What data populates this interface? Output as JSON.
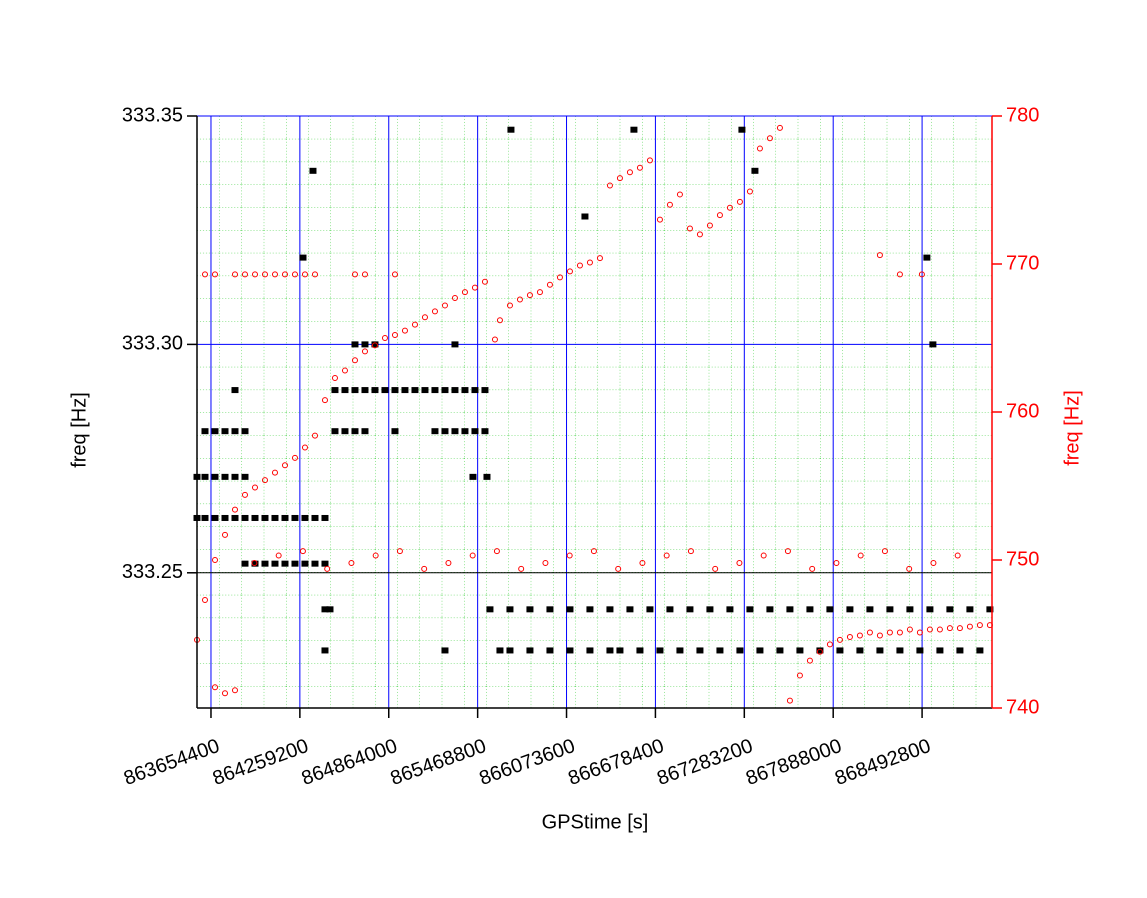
{
  "chart_data": {
    "type": "scatter",
    "x_label": "GPStime [s]",
    "y_label": "freq [Hz]",
    "y2_label": "freq [Hz]",
    "xlim": [
      863559300,
      868968500
    ],
    "xticks": [
      863654400,
      864259200,
      864864000,
      865468800,
      866073600,
      866678400,
      867283200,
      867888000,
      868492800
    ],
    "ylim": [
      333.2204,
      333.35
    ],
    "yticks": [
      333.35,
      {
        "value": 333.3,
        "label": "333.30"
      },
      333.25
    ],
    "y2lim": [
      740,
      780
    ],
    "y2ticks": [
      740,
      750,
      760,
      770,
      780
    ],
    "grid": true,
    "series": [
      {
        "color": "#000000",
        "marker": "square",
        "x": [
          863613700,
          863681800,
          863749800,
          863817800,
          863885800,
          864498100,
          864566100,
          864634200,
          864702200,
          864906300,
          865178400,
          865246500,
          865314500,
          865382500,
          865450600,
          865518600
        ],
        "values": [
          333.281,
          333.281,
          333.281,
          333.281,
          333.281,
          333.281,
          333.281,
          333.281,
          333.281,
          333.281,
          333.281,
          333.281,
          333.281,
          333.281,
          333.281,
          333.281
        ]
      },
      {
        "color": "#000000",
        "marker": "square",
        "x": [
          863559300,
          863613700,
          863681800,
          863749800,
          863817800,
          863885800
        ],
        "values": [
          333.271,
          333.271,
          333.271,
          333.271,
          333.271,
          333.271
        ]
      },
      {
        "color": "#000000",
        "marker": "square",
        "x": [
          863559300,
          863613700,
          863681800,
          863749800,
          863817800,
          863885800,
          863953900,
          864021900,
          864089900,
          864158000,
          864226000,
          864294000,
          864362100,
          864430100
        ],
        "values": [
          333.262,
          333.262,
          333.262,
          333.262,
          333.262,
          333.262,
          333.262,
          333.262,
          333.262,
          333.262,
          333.262,
          333.262,
          333.262,
          333.262
        ]
      },
      {
        "color": "#000000",
        "marker": "square",
        "x": [
          863817800,
          864498100,
          864566100,
          864634200,
          864702200,
          864770200,
          864838300,
          864906300,
          864974300,
          865042400,
          865110400,
          865178400,
          865246500,
          865314500,
          865382500,
          865450600,
          865518600
        ],
        "values": [
          333.29,
          333.29,
          333.29,
          333.29,
          333.29,
          333.29,
          333.29,
          333.29,
          333.29,
          333.29,
          333.29,
          333.29,
          333.29,
          333.29,
          333.29,
          333.29,
          333.29
        ]
      },
      {
        "color": "#000000",
        "marker": "square",
        "x": [
          864634200,
          864702200,
          864770200,
          865314500
        ],
        "values": [
          333.3,
          333.3,
          333.3,
          333.3
        ]
      },
      {
        "color": "#000000",
        "marker": "square",
        "x": [
          863885800,
          863953900,
          864021900,
          864089900,
          864158000,
          864226000,
          864294000,
          864362100,
          864430100
        ],
        "values": [
          333.252,
          333.252,
          333.252,
          333.252,
          333.252,
          333.252,
          333.252,
          333.252,
          333.252
        ]
      },
      {
        "color": "#000000",
        "marker": "square",
        "x": [
          864430100,
          864464100,
          865552600,
          865688700,
          865824700,
          865960800,
          866096900,
          866232900,
          866369000,
          866505100,
          866641100,
          866777200,
          866913300,
          867049300,
          867185400,
          867321500,
          867457500,
          867593600,
          867729700,
          867865700,
          868001800,
          868137900,
          868273900,
          868410000,
          868546100,
          868682100,
          868818200,
          868954300
        ],
        "values": [
          333.242,
          333.242,
          333.242,
          333.242,
          333.242,
          333.242,
          333.242,
          333.242,
          333.242,
          333.242,
          333.242,
          333.242,
          333.242,
          333.242,
          333.242,
          333.242,
          333.242,
          333.242,
          333.242,
          333.242,
          333.242,
          333.242,
          333.242,
          333.242,
          333.242,
          333.242,
          333.242,
          333.242
        ]
      },
      {
        "color": "#000000",
        "marker": "square",
        "x": [
          864430100,
          865246500,
          865620600,
          865688700,
          865824700,
          865960800,
          866096900,
          866232900,
          866369000,
          866437000,
          866573100,
          866709200,
          866845200,
          866981300,
          867117400,
          867253400,
          867389500,
          867525600,
          867661600,
          867797700,
          867933800,
          868069800,
          868205900,
          868342000,
          868478000,
          868614100,
          868750200,
          868886200
        ],
        "values": [
          333.233,
          333.233,
          333.233,
          333.233,
          333.233,
          333.233,
          333.233,
          333.233,
          333.233,
          333.233,
          333.233,
          333.233,
          333.233,
          333.233,
          333.233,
          333.233,
          333.233,
          333.233,
          333.233,
          333.233,
          333.233,
          333.233,
          333.233,
          333.233,
          333.233,
          333.233,
          333.233,
          333.233
        ]
      },
      {
        "color": "#000000",
        "marker": "square",
        "x": [
          865695400,
          866532200,
          867267000,
          864348400,
          864280400,
          866198900,
          867355500,
          868525500,
          868566300,
          865437000,
          865532300
        ],
        "values": [
          333.347,
          333.347,
          333.347,
          333.338,
          333.319,
          333.328,
          333.338,
          333.319,
          333.3,
          333.271,
          333.271
        ]
      },
      {
        "color": "#ff0000",
        "marker": "circle",
        "axis": "y2",
        "x": [
          863559300,
          863613700,
          863681800,
          863749800,
          863817800,
          863885800,
          863953900,
          864021900,
          864089900,
          864158000,
          864226000,
          864294000,
          864362100,
          864430100,
          864498100,
          864566100,
          864634200,
          864702200,
          864770200,
          864838300,
          864906300,
          864974300,
          865042400,
          865110400,
          865178400,
          865246500,
          865314500,
          865382500,
          865450600,
          865518600
        ],
        "values": [
          744.6,
          747.3,
          750,
          751.7,
          753.4,
          754.4,
          754.9,
          755.4,
          755.9,
          756.4,
          756.9,
          757.6,
          758.4,
          760.8,
          762.3,
          762.8,
          763.5,
          764.1,
          764.5,
          765,
          765.2,
          765.5,
          765.9,
          766.4,
          766.8,
          767.2,
          767.7,
          768.1,
          768.4,
          768.8
        ]
      },
      {
        "color": "#ff0000",
        "marker": "circle",
        "axis": "y2",
        "x": [
          865586600,
          865620600,
          865688700,
          865756700,
          865824700,
          865892800,
          865960800,
          866028800,
          866096900,
          866164900,
          866232900,
          866301000
        ],
        "values": [
          764.9,
          766.2,
          767.2,
          767.6,
          767.9,
          768.1,
          768.6,
          769.1,
          769.5,
          769.9,
          770.1,
          770.4
        ]
      },
      {
        "color": "#ff0000",
        "marker": "circle",
        "axis": "y2",
        "x": [
          866369000,
          866437000,
          866505100,
          866573100,
          866641100
        ],
        "values": [
          775.3,
          775.8,
          776.2,
          776.5,
          777
        ]
      },
      {
        "color": "#ff0000",
        "marker": "circle",
        "axis": "y2",
        "x": [
          866709200,
          866777200,
          866845200
        ],
        "values": [
          773,
          774,
          774.7
        ]
      },
      {
        "color": "#ff0000",
        "marker": "circle",
        "axis": "y2",
        "x": [
          866913300,
          866981300,
          867049300,
          867117400,
          867185400,
          867253400,
          867321500
        ],
        "values": [
          772.4,
          772,
          772.6,
          773.3,
          773.8,
          774.2,
          774.9
        ]
      },
      {
        "color": "#ff0000",
        "marker": "circle",
        "axis": "y2",
        "x": [
          867389500,
          867457500,
          867525600
        ],
        "values": [
          777.8,
          778.5,
          779.2
        ]
      },
      {
        "color": "#ff0000",
        "marker": "circle",
        "axis": "y2",
        "x": [
          867593600,
          867661600,
          867729700,
          867797700,
          867865700,
          867933800,
          868001800,
          868069800,
          868137900,
          868205900,
          868273900,
          868342000,
          868410000,
          868478000,
          868546100,
          868614100,
          868682100,
          868750200,
          868818200,
          868886200,
          868954300
        ],
        "values": [
          740.5,
          742.2,
          743.2,
          743.8,
          744.3,
          744.6,
          744.8,
          744.9,
          745.1,
          744.9,
          745.1,
          745.1,
          745.3,
          745.1,
          745.3,
          745.3,
          745.4,
          745.4,
          745.5,
          745.6,
          745.6
        ]
      },
      {
        "color": "#ff0000",
        "marker": "circle",
        "axis": "y2",
        "x": [
          863950000,
          864115000,
          864280000,
          864445000,
          864610000,
          864775000,
          864940000,
          865105000,
          865270000,
          865435000,
          865600000,
          865765000,
          865930000,
          866095000,
          866260000,
          866425000,
          866590000,
          866755000,
          866920000,
          867085000,
          867250000,
          867415000,
          867580000,
          867745000,
          867910000,
          868075000,
          868240000,
          868405000,
          868570000,
          868735000
        ],
        "values": [
          749.8,
          750.3,
          750.6,
          749.4,
          749.8,
          750.3,
          750.6,
          749.4,
          749.8,
          750.3,
          750.6,
          749.4,
          749.8,
          750.3,
          750.6,
          749.4,
          749.8,
          750.3,
          750.6,
          749.4,
          749.8,
          750.3,
          750.6,
          749.4,
          749.8,
          750.3,
          750.6,
          749.4,
          749.8,
          750.3
        ]
      },
      {
        "color": "#ff0000",
        "marker": "circle",
        "axis": "y2",
        "x": [
          863613700,
          863681800,
          863817800,
          863885800,
          863953900,
          864021900,
          864089900,
          864158000,
          864226000,
          864294000,
          864362100,
          864634200,
          864702200,
          864906300
        ],
        "values": [
          769.3,
          769.3,
          769.3,
          769.3,
          769.3,
          769.3,
          769.3,
          769.3,
          769.3,
          769.3,
          769.3,
          769.3,
          769.3,
          769.3
        ]
      },
      {
        "color": "#ff0000",
        "marker": "circle",
        "axis": "y2",
        "x": [
          863681800,
          863749800,
          863817800,
          868205900,
          868342000,
          868491500
        ],
        "values": [
          741.4,
          741,
          741.2,
          770.6,
          769.3,
          769.3
        ]
      }
    ]
  }
}
